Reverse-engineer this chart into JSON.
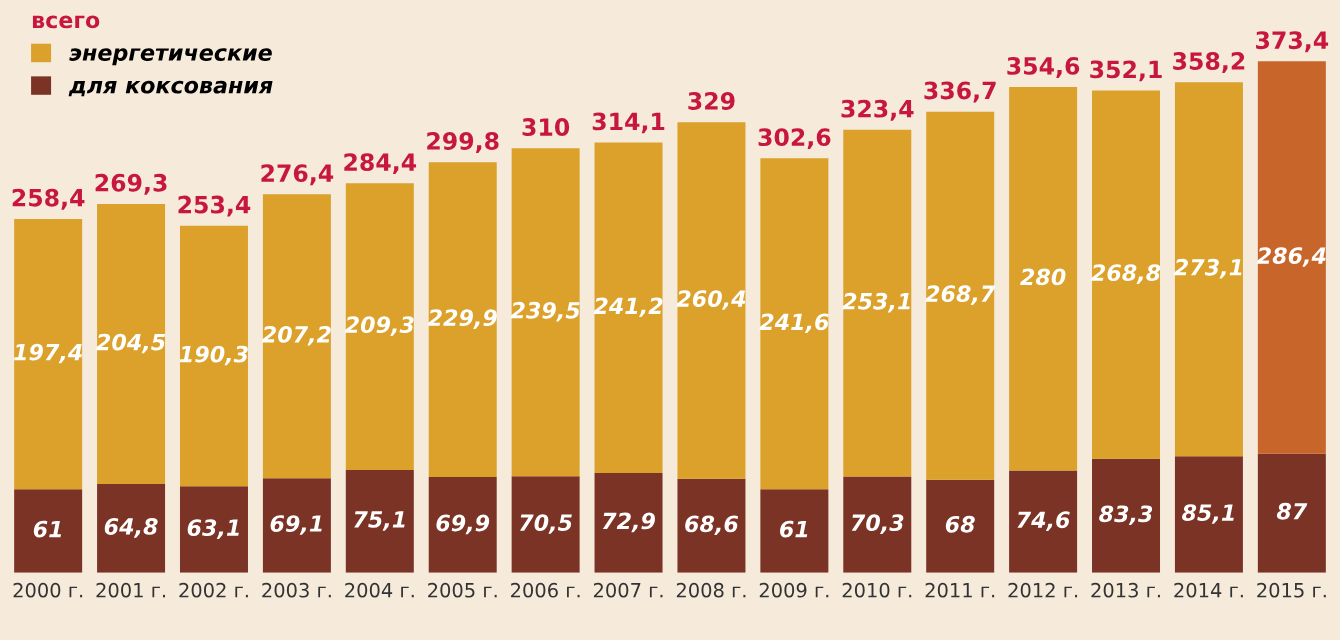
{
  "chart_data": {
    "type": "bar",
    "stacked": true,
    "legend": "top left",
    "legend_title": "всего",
    "categories": [
      "2000 г.",
      "2001 г.",
      "2002 г.",
      "2003 г.",
      "2004 г.",
      "2005 г.",
      "2006 г.",
      "2007 г.",
      "2008 г.",
      "2009 г.",
      "2010 г.",
      "2011 г.",
      "2012 г.",
      "2013 г.",
      "2014 г.",
      "2015 г."
    ],
    "series": [
      {
        "name": "для коксования",
        "color": "#7a3325",
        "values": [
          61,
          64.8,
          63.1,
          69.1,
          75.1,
          69.9,
          70.5,
          72.9,
          68.6,
          61,
          70.3,
          68,
          74.6,
          83.3,
          85.1,
          87
        ],
        "value_labels": [
          "61",
          "64,8",
          "63,1",
          "69,1",
          "75,1",
          "69,9",
          "70,5",
          "72,9",
          "68,6",
          "61",
          "70,3",
          "68",
          "74,6",
          "83,3",
          "85,1",
          "87"
        ]
      },
      {
        "name": "энергетические",
        "color": "#dba12b",
        "colors": [
          "#dba12b",
          "#dba12b",
          "#dba12b",
          "#dba12b",
          "#dba12b",
          "#dba12b",
          "#dba12b",
          "#dba12b",
          "#dba12b",
          "#dba12b",
          "#dba12b",
          "#dba12b",
          "#dba12b",
          "#dba12b",
          "#dba12b",
          "#c8652a"
        ],
        "values": [
          197.4,
          204.5,
          190.3,
          207.2,
          209.3,
          229.9,
          239.5,
          241.2,
          260.4,
          241.6,
          253.1,
          268.7,
          280,
          268.8,
          273.1,
          286.4
        ],
        "value_labels": [
          "197,4",
          "204,5",
          "190,3",
          "207,2",
          "209,3",
          "229,9",
          "239,5",
          "241,2",
          "260,4",
          "241,6",
          "253,1",
          "268,7",
          "280",
          "268,8",
          "273,1",
          "286,4"
        ]
      }
    ],
    "totals": [
      "258,4",
      "269,3",
      "253,4",
      "276,4",
      "284,4",
      "299,8",
      "310",
      "314,1",
      "329",
      "302,6",
      "323,4",
      "336,7",
      "354,6",
      "352,1",
      "358,2",
      "373,4"
    ]
  }
}
